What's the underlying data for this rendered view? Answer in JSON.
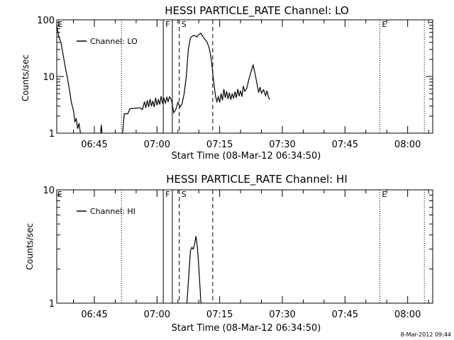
{
  "footer_stamp": "8-Mar-2012 09:44",
  "chart_data": [
    {
      "type": "line",
      "title": "HESSI PARTICLE_RATE Channel: LO",
      "xlabel": "Start Time (08-Mar-12 06:34:50)",
      "ylabel": "Counts/sec",
      "yscale": "log",
      "ylim": [
        1,
        100
      ],
      "xlim": [
        "06:36",
        "08:06"
      ],
      "xticks": [
        "06:45",
        "07:00",
        "07:15",
        "07:30",
        "07:45",
        "08:00"
      ],
      "yticks": [
        {
          "value": 1,
          "label": "1"
        },
        {
          "value": 10,
          "label": "10"
        },
        {
          "value": 100,
          "label": "100"
        }
      ],
      "legend": {
        "placement": "top-left",
        "label": "Channel: LO"
      },
      "markers": [
        {
          "time": "06:51:30",
          "style": "dotted",
          "label": ""
        },
        {
          "time": "07:01:30",
          "style": "solid",
          "label": "F"
        },
        {
          "time": "07:03:40",
          "style": "solid",
          "label": ""
        },
        {
          "time": "07:05:20",
          "style": "dashed",
          "label": "S"
        },
        {
          "time": "07:13:20",
          "style": "dashed",
          "label": ""
        },
        {
          "time": "07:53:20",
          "style": "dotted",
          "label": "E"
        },
        {
          "time": "08:04:00",
          "style": "dotted",
          "label": ""
        }
      ],
      "edge_labels": [
        {
          "position": "left",
          "label": "E"
        }
      ],
      "series": [
        {
          "segments": [
            [
              [
                "06:36:00",
                80
              ],
              [
                "06:36:30",
                50
              ],
              [
                "06:37:00",
                40
              ],
              [
                "06:37:30",
                25
              ],
              [
                "06:38:00",
                15
              ],
              [
                "06:38:30",
                10
              ],
              [
                "06:39:00",
                6
              ],
              [
                "06:39:30",
                3.5
              ],
              [
                "06:40:00",
                2.5
              ],
              [
                "06:40:20",
                1.6
              ],
              [
                "06:40:40",
                1.8
              ],
              [
                "06:41:00",
                1.2
              ],
              [
                "06:41:20",
                1.5
              ],
              [
                "06:41:40",
                1
              ]
            ],
            [
              [
                "06:46:30",
                1
              ],
              [
                "06:46:40",
                1.4
              ],
              [
                "06:46:50",
                1
              ]
            ],
            [
              [
                "06:51:45",
                1
              ],
              [
                "06:52:10",
                2.2
              ],
              [
                "06:53:00",
                2.2
              ],
              [
                "06:53:30",
                2.7
              ],
              [
                "06:56:00",
                2.8
              ],
              [
                "06:56:30",
                2.6
              ],
              [
                "06:57:00",
                3.6
              ],
              [
                "06:57:20",
                2.8
              ],
              [
                "06:57:40",
                3.8
              ],
              [
                "06:58:00",
                2.9
              ],
              [
                "06:58:20",
                4
              ],
              [
                "06:58:40",
                3
              ],
              [
                "06:59:00",
                3.7
              ],
              [
                "06:59:20",
                2.9
              ],
              [
                "06:59:40",
                4.2
              ],
              [
                "07:00:00",
                3.1
              ],
              [
                "07:00:20",
                3.9
              ],
              [
                "07:00:40",
                3.2
              ],
              [
                "07:01:00",
                4.5
              ],
              [
                "07:01:20",
                3.3
              ],
              [
                "07:01:40",
                4.1
              ],
              [
                "07:02:00",
                3.4
              ],
              [
                "07:02:20",
                4.3
              ],
              [
                "07:02:40",
                3.6
              ],
              [
                "07:03:00",
                4.4
              ],
              [
                "07:03:30",
                3.8
              ],
              [
                "07:04:00",
                2.3
              ],
              [
                "07:04:30",
                2.6
              ],
              [
                "07:05:00",
                3.5
              ],
              [
                "07:05:30",
                2.9
              ],
              [
                "07:06:00",
                3.3
              ],
              [
                "07:06:30",
                5
              ],
              [
                "07:07:00",
                10
              ],
              [
                "07:07:30",
                30
              ],
              [
                "07:08:00",
                48
              ],
              [
                "07:08:30",
                52
              ],
              [
                "07:09:00",
                53
              ],
              [
                "07:09:30",
                50
              ],
              [
                "07:10:00",
                55
              ],
              [
                "07:10:30",
                58
              ],
              [
                "07:11:00",
                50
              ],
              [
                "07:11:30",
                45
              ],
              [
                "07:12:00",
                40
              ],
              [
                "07:12:30",
                32
              ],
              [
                "07:13:00",
                20
              ],
              [
                "07:13:30",
                9
              ],
              [
                "07:14:00",
                4.5
              ],
              [
                "07:14:20",
                3.6
              ],
              [
                "07:14:40",
                4.4
              ],
              [
                "07:15:00",
                3.5
              ],
              [
                "07:15:20",
                5
              ],
              [
                "07:15:40",
                3.8
              ],
              [
                "07:16:00",
                6
              ],
              [
                "07:16:20",
                4.2
              ],
              [
                "07:16:40",
                5.5
              ],
              [
                "07:17:00",
                4
              ],
              [
                "07:17:20",
                5.2
              ],
              [
                "07:17:40",
                3.9
              ],
              [
                "07:18:00",
                5
              ],
              [
                "07:18:20",
                4.1
              ],
              [
                "07:18:40",
                5.4
              ],
              [
                "07:19:00",
                4.2
              ],
              [
                "07:19:20",
                6
              ],
              [
                "07:19:40",
                4.5
              ],
              [
                "07:20:00",
                5.6
              ],
              [
                "07:20:20",
                4.4
              ],
              [
                "07:20:40",
                6.8
              ],
              [
                "07:21:00",
                5.5
              ],
              [
                "07:21:30",
                6.2
              ],
              [
                "07:22:00",
                9
              ],
              [
                "07:22:30",
                12
              ],
              [
                "07:23:00",
                16
              ],
              [
                "07:23:30",
                11
              ],
              [
                "07:24:00",
                7
              ],
              [
                "07:24:20",
                5.2
              ],
              [
                "07:24:40",
                6.5
              ],
              [
                "07:25:00",
                5.1
              ],
              [
                "07:25:30",
                5.8
              ],
              [
                "07:26:00",
                4.6
              ],
              [
                "07:26:20",
                5.6
              ],
              [
                "07:26:40",
                4.3
              ],
              [
                "07:27:00",
                3.9
              ]
            ]
          ]
        }
      ]
    },
    {
      "type": "line",
      "title": "HESSI PARTICLE_RATE Channel: HI",
      "xlabel": "Start Time (08-Mar-12 06:34:50)",
      "ylabel": "Counts/sec",
      "yscale": "log",
      "ylim": [
        1,
        10
      ],
      "xlim": [
        "06:36",
        "08:06"
      ],
      "xticks": [
        "06:45",
        "07:00",
        "07:15",
        "07:30",
        "07:45",
        "08:00"
      ],
      "yticks": [
        {
          "value": 1,
          "label": "1"
        },
        {
          "value": 10,
          "label": "10"
        }
      ],
      "legend": {
        "placement": "top-left",
        "label": "Channel: HI"
      },
      "markers": [
        {
          "time": "06:51:30",
          "style": "dotted",
          "label": ""
        },
        {
          "time": "07:01:30",
          "style": "solid",
          "label": "F"
        },
        {
          "time": "07:03:40",
          "style": "solid",
          "label": ""
        },
        {
          "time": "07:05:20",
          "style": "dashed",
          "label": "S"
        },
        {
          "time": "07:13:20",
          "style": "dashed",
          "label": ""
        },
        {
          "time": "07:53:20",
          "style": "dotted",
          "label": "E"
        },
        {
          "time": "08:04:00",
          "style": "dotted",
          "label": ""
        }
      ],
      "edge_labels": [
        {
          "position": "left",
          "label": "E"
        }
      ],
      "series": [
        {
          "segments": [
            [
              [
                "07:07:10",
                1
              ],
              [
                "07:07:40",
                1.9
              ],
              [
                "07:08:00",
                2.9
              ],
              [
                "07:08:20",
                3.1
              ],
              [
                "07:08:40",
                3
              ],
              [
                "07:09:00",
                3.3
              ],
              [
                "07:09:20",
                3.9
              ],
              [
                "07:09:40",
                3.1
              ],
              [
                "07:10:00",
                2.1
              ],
              [
                "07:10:20",
                1.3
              ],
              [
                "07:10:30",
                1
              ]
            ]
          ]
        }
      ]
    }
  ]
}
